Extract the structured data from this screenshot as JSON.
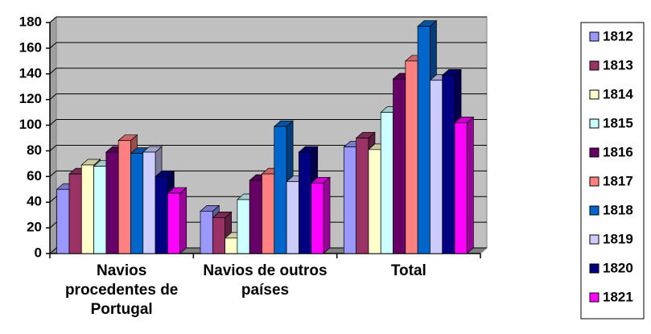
{
  "chart_data": {
    "type": "bar3d",
    "categories": [
      "Navios procedentes de Portugal",
      "Navios de outros países",
      "Total"
    ],
    "series": [
      {
        "name": "1812",
        "color": "#9999ff",
        "values": [
          50,
          33,
          83
        ]
      },
      {
        "name": "1813",
        "color": "#993366",
        "values": [
          62,
          28,
          90
        ]
      },
      {
        "name": "1814",
        "color": "#ffffcc",
        "values": [
          69,
          12,
          81
        ]
      },
      {
        "name": "1815",
        "color": "#ccffff",
        "values": [
          68,
          42,
          110
        ]
      },
      {
        "name": "1816",
        "color": "#660066",
        "values": [
          79,
          57,
          136
        ]
      },
      {
        "name": "1817",
        "color": "#ff8080",
        "values": [
          88,
          62,
          150
        ]
      },
      {
        "name": "1818",
        "color": "#0066cc",
        "values": [
          78,
          99,
          177
        ]
      },
      {
        "name": "1819",
        "color": "#ccccff",
        "values": [
          79,
          56,
          135
        ]
      },
      {
        "name": "1820",
        "color": "#000080",
        "values": [
          60,
          79,
          139
        ]
      },
      {
        "name": "1821",
        "color": "#ff00ff",
        "values": [
          47,
          55,
          102
        ]
      }
    ],
    "ylim": [
      0,
      180
    ],
    "yticks": [
      0,
      20,
      40,
      60,
      80,
      100,
      120,
      140,
      160,
      180
    ],
    "grid": true,
    "legend": "right"
  }
}
